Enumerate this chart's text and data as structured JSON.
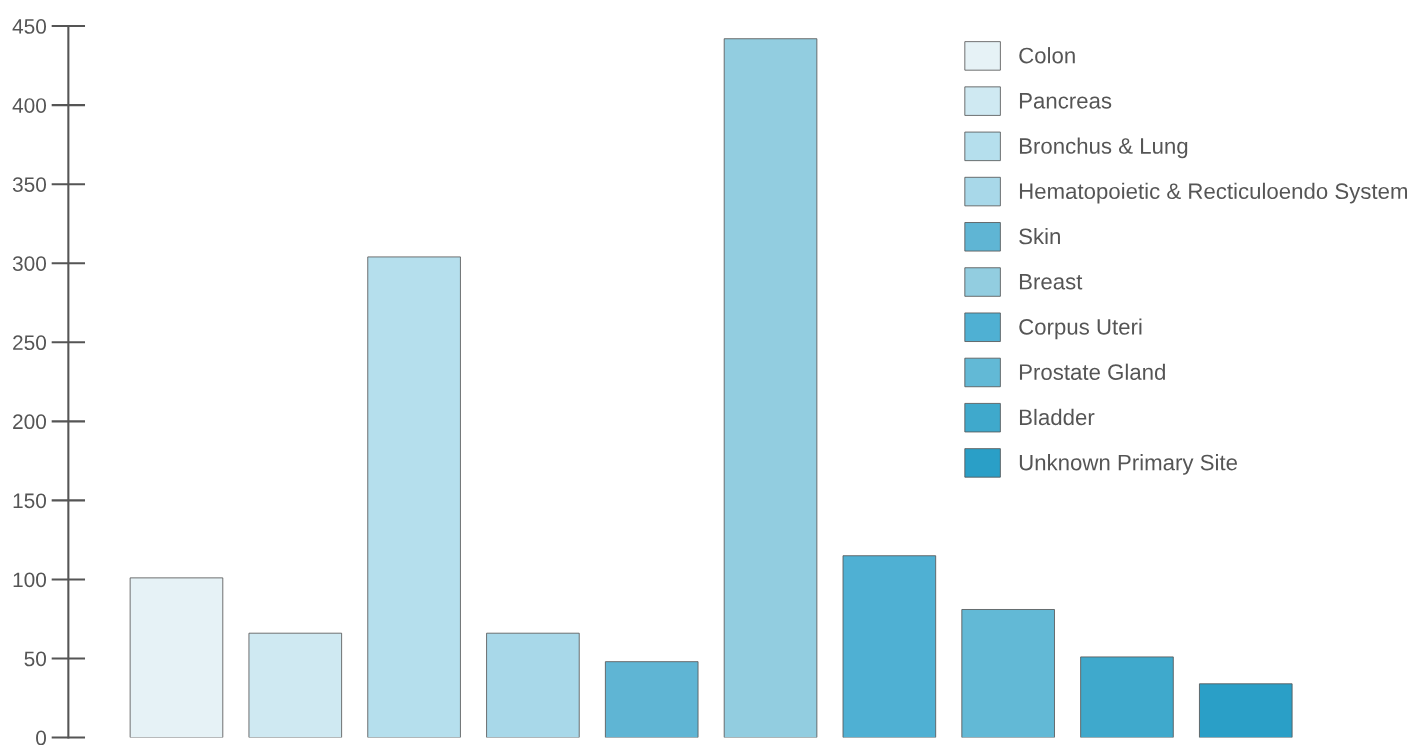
{
  "chart_data": {
    "type": "bar",
    "stacked": true,
    "categories": [
      null,
      null,
      null,
      null,
      null,
      null,
      null,
      null,
      null,
      null
    ],
    "series": [
      {
        "name": "Colon",
        "color": "#e6f2f6",
        "values": [
          101,
          0,
          0,
          0,
          0,
          0,
          0,
          0,
          0,
          0
        ]
      },
      {
        "name": "Pancreas",
        "color": "#cfe9f2",
        "values": [
          0,
          66,
          0,
          0,
          0,
          0,
          0,
          0,
          0,
          0
        ]
      },
      {
        "name": "Bronchus & Lung",
        "color": "#b5dfed",
        "values": [
          0,
          0,
          304,
          0,
          0,
          0,
          0,
          0,
          0,
          0
        ]
      },
      {
        "name": "Hematopoietic & Recticuloendo System",
        "color": "#a8d8e9",
        "values": [
          0,
          0,
          0,
          66,
          0,
          0,
          0,
          0,
          0,
          0
        ]
      },
      {
        "name": "Skin",
        "color": "#5fb5d4",
        "values": [
          0,
          0,
          0,
          0,
          48,
          0,
          0,
          0,
          0,
          0
        ]
      },
      {
        "name": "Breast",
        "color": "#92cde0",
        "values": [
          0,
          0,
          0,
          0,
          0,
          442,
          0,
          0,
          0,
          0
        ]
      },
      {
        "name": "Corpus Uteri",
        "color": "#4fb0d3",
        "values": [
          0,
          0,
          0,
          0,
          0,
          0,
          115,
          0,
          0,
          0
        ]
      },
      {
        "name": "Prostate Gland",
        "color": "#62b9d6",
        "values": [
          0,
          0,
          0,
          0,
          0,
          0,
          0,
          81,
          0,
          0
        ]
      },
      {
        "name": "Bladder",
        "color": "#3fa9cc",
        "values": [
          0,
          0,
          0,
          0,
          0,
          0,
          0,
          0,
          51,
          0
        ]
      },
      {
        "name": "Unknown Primary Site",
        "color": "#2a9fc7",
        "values": [
          0,
          0,
          0,
          0,
          0,
          0,
          0,
          0,
          0,
          34
        ]
      }
    ],
    "ylim": [
      0,
      450
    ],
    "yticks": [
      0,
      50,
      100,
      150,
      200,
      250,
      300,
      350,
      400,
      450
    ],
    "grid": false,
    "legend": "top right",
    "tick_labels": "y"
  }
}
